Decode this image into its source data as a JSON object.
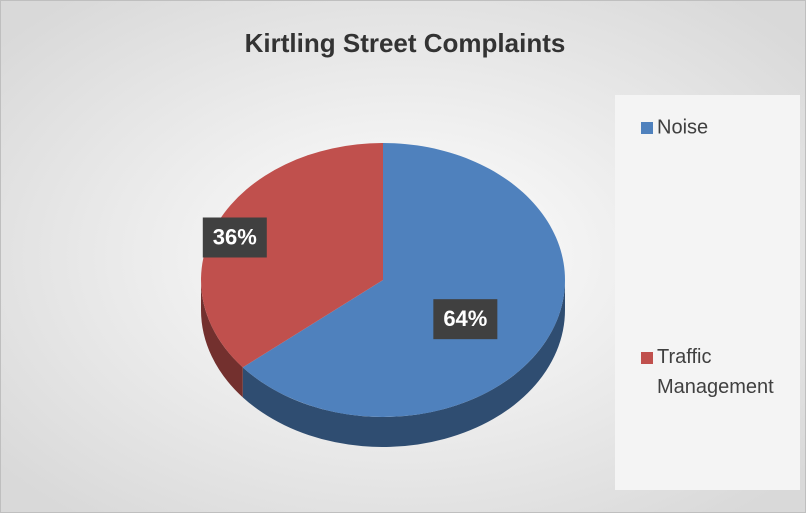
{
  "chart_data": {
    "type": "pie",
    "title": "Kirtling Street Complaints",
    "categories": [
      "Noise",
      "Traffic Management"
    ],
    "values": [
      64,
      36
    ],
    "value_labels": [
      "64%",
      "36%"
    ],
    "colors": [
      "#4f81bd",
      "#c0504d"
    ],
    "legend": "right"
  }
}
